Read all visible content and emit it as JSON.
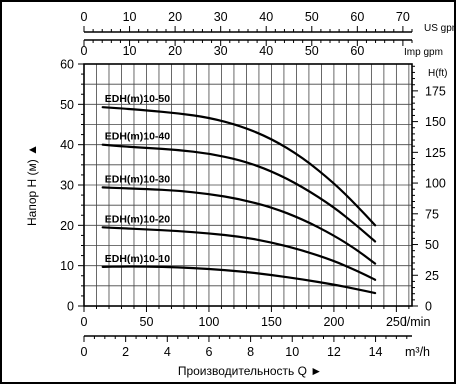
{
  "chart_data": {
    "type": "line",
    "grid": true,
    "ylabel": "Напор H (м) ▲",
    "xlabel": "Производительность Q ►",
    "x_axes": {
      "us_gpm": {
        "unit": "US gpm",
        "ticks": [
          0,
          10,
          20,
          30,
          40,
          50,
          60,
          70
        ],
        "lim": [
          0,
          72
        ]
      },
      "imp_gpm": {
        "unit": "Imp gpm",
        "ticks": [
          0,
          10,
          20,
          30,
          40,
          50,
          60
        ],
        "lim": [
          0,
          72
        ]
      },
      "l_min": {
        "unit": "l/min",
        "ticks": [
          0,
          50,
          100,
          150,
          200,
          250
        ],
        "lim": [
          0,
          262.5
        ]
      },
      "m3_h": {
        "unit": "m³/h",
        "ticks": [
          0,
          2,
          4,
          6,
          8,
          10,
          12,
          14
        ],
        "lim": [
          0,
          15.75
        ]
      }
    },
    "y_axes": {
      "m": {
        "ticks": [
          0,
          10,
          20,
          30,
          40,
          50,
          60
        ],
        "lim": [
          0,
          60
        ]
      },
      "ft": {
        "unit": "H(ft)",
        "ticks": [
          0,
          25,
          50,
          75,
          100,
          125,
          150,
          175
        ],
        "lim": [
          0,
          196.85
        ]
      }
    },
    "series": [
      {
        "name": "EDH(m)10-50",
        "x": [
          15,
          30,
          50,
          75,
          100,
          125,
          150,
          175,
          200,
          218,
          233
        ],
        "y": [
          49.3,
          49,
          48.5,
          47.8,
          46.7,
          44.7,
          41.5,
          36.8,
          30.5,
          25,
          20
        ]
      },
      {
        "name": "EDH(m)10-40",
        "x": [
          15,
          30,
          50,
          75,
          100,
          125,
          150,
          175,
          200,
          218,
          233
        ],
        "y": [
          40,
          39.6,
          39.2,
          38.7,
          37.8,
          36.2,
          33.5,
          29.5,
          24.5,
          20,
          16
        ]
      },
      {
        "name": "EDH(m)10-30",
        "x": [
          15,
          30,
          50,
          75,
          100,
          125,
          150,
          175,
          200,
          218,
          233
        ],
        "y": [
          29.4,
          29.2,
          29,
          28.6,
          27.8,
          26.5,
          24.5,
          21.5,
          17.5,
          14,
          10.5
        ]
      },
      {
        "name": "EDH(m)10-20",
        "x": [
          15,
          30,
          50,
          75,
          100,
          125,
          150,
          175,
          200,
          218,
          233
        ],
        "y": [
          19.5,
          19.3,
          19,
          18.6,
          18,
          17.2,
          15.8,
          13.8,
          11.2,
          8.8,
          6.5
        ]
      },
      {
        "name": "EDH(m)10-10",
        "x": [
          15,
          30,
          50,
          75,
          100,
          125,
          150,
          175,
          200,
          218,
          233
        ],
        "y": [
          9.7,
          9.8,
          9.8,
          9.6,
          9.2,
          8.6,
          7.7,
          6.6,
          5.3,
          4.2,
          3.2
        ]
      }
    ]
  }
}
